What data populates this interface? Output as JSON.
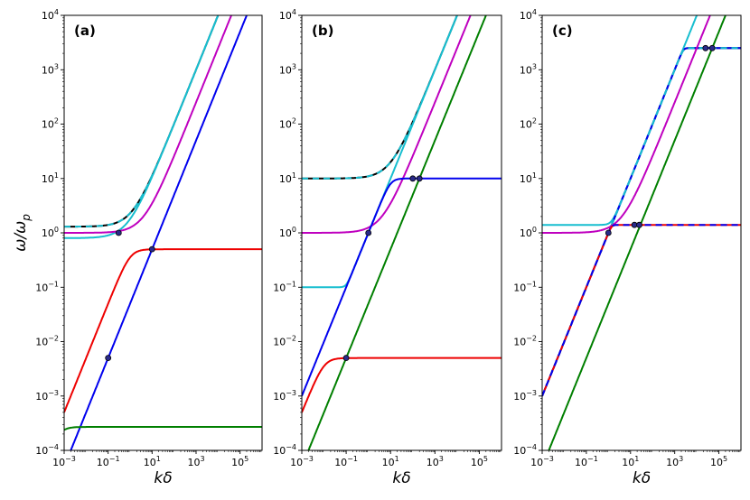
{
  "chart_data": {
    "type": "line",
    "xlabel": "kδ",
    "ylabel": "ω/ω_p",
    "xscale": "log",
    "yscale": "log",
    "xlim": [
      0.001,
      1000000
    ],
    "ylim": [
      0.0001,
      10000
    ],
    "x_ticks": [
      {
        "value": 0.001,
        "base": "10",
        "exp": "−3"
      },
      {
        "value": 0.1,
        "base": "10",
        "exp": "−1"
      },
      {
        "value": 10,
        "base": "10",
        "exp": "1"
      },
      {
        "value": 1000,
        "base": "10",
        "exp": "3"
      },
      {
        "value": 100000,
        "base": "10",
        "exp": "5"
      }
    ],
    "y_ticks": [
      {
        "value": 0.0001,
        "base": "10",
        "exp": "−4"
      },
      {
        "value": 0.001,
        "base": "10",
        "exp": "−3"
      },
      {
        "value": 0.01,
        "base": "10",
        "exp": "−2"
      },
      {
        "value": 0.1,
        "base": "10",
        "exp": "−1"
      },
      {
        "value": 1,
        "base": "10",
        "exp": "0"
      },
      {
        "value": 10,
        "base": "10",
        "exp": "1"
      },
      {
        "value": 100,
        "base": "10",
        "exp": "2"
      },
      {
        "value": 1000,
        "base": "10",
        "exp": "3"
      },
      {
        "value": 10000,
        "base": "10",
        "exp": "4"
      }
    ],
    "grid": false,
    "legend": false,
    "colors": {
      "black": "#000000",
      "cyan": "#17becf",
      "magenta": "#bf00bf",
      "blue": "#0000ee",
      "red": "#ee0000",
      "green": "#007f00"
    },
    "panels": [
      {
        "label": "(a)",
        "series": [
          {
            "color": "black",
            "dashed": true,
            "kind": "dispersion",
            "a": 1.3,
            "b": 1.0,
            "p": 1,
            "q": 1
          },
          {
            "color": "cyan",
            "dashed": true,
            "kind": "dispersion",
            "a": 0.8,
            "b": 1.0,
            "p": 1,
            "q": 1
          },
          {
            "color": "magenta",
            "kind": "dispersion",
            "a": 1.0,
            "b": 0.25,
            "p": 1,
            "q": 1
          },
          {
            "color": "blue",
            "kind": "line",
            "c": 0.05
          },
          {
            "color": "red",
            "kind": "sat",
            "c": 0.5,
            "plateau": 0.5,
            "p": 2
          },
          {
            "color": "green",
            "kind": "sat",
            "c": 0.5,
            "plateau": 0.00027,
            "p": 2
          }
        ],
        "points": [
          {
            "x": 0.3,
            "y": 1.0
          },
          {
            "x": 10,
            "y": 0.5
          },
          {
            "x": 0.1,
            "y": 0.005
          }
        ]
      },
      {
        "label": "(b)",
        "series": [
          {
            "color": "black",
            "dashed": true,
            "kind": "dispersion",
            "a": 10,
            "b": 1.0,
            "p": 1,
            "q": 1
          },
          {
            "color": "cyan",
            "kind": "cyan_b"
          },
          {
            "color": "magenta",
            "kind": "dispersion",
            "a": 1.0,
            "b": 0.25,
            "p": 1,
            "q": 1
          },
          {
            "color": "blue",
            "kind": "sat",
            "c": 1.0,
            "plateau": 10,
            "p": 3
          },
          {
            "color": "green",
            "kind": "line",
            "c": 0.05
          },
          {
            "color": "red",
            "kind": "sat",
            "c": 0.5,
            "plateau": 0.005,
            "p": 2
          }
        ],
        "points": [
          {
            "x": 1,
            "y": 1.0
          },
          {
            "x": 100,
            "y": 10
          },
          {
            "x": 200,
            "y": 10
          },
          {
            "x": 0.1,
            "y": 0.005
          }
        ]
      },
      {
        "label": "(c)",
        "series": [
          {
            "color": "black",
            "dashed": true,
            "kind": "sat",
            "c": 1.0,
            "plateau": 2500,
            "p": 8
          },
          {
            "color": "cyan",
            "dashed": true,
            "kind": "dispersion",
            "a": 1.4,
            "b": 1.0,
            "p": 1,
            "q": 4
          },
          {
            "color": "blue",
            "dashed": true,
            "kind": "sat",
            "c": 1.0,
            "plateau": 2500,
            "p": 8
          },
          {
            "color": "magenta",
            "kind": "dispersion",
            "a": 1.0,
            "b": 0.25,
            "p": 1,
            "q": 1
          },
          {
            "color": "red",
            "dashed": true,
            "kind": "sat",
            "c": 1.0,
            "plateau": 1.4,
            "p": 8
          },
          {
            "color": "green",
            "kind": "line",
            "c": 0.05
          }
        ],
        "points": [
          {
            "x": 1,
            "y": 1.0
          },
          {
            "x": 15,
            "y": 1.4
          },
          {
            "x": 25,
            "y": 1.4
          },
          {
            "x": 25000,
            "y": 2500
          },
          {
            "x": 50000,
            "y": 2500
          }
        ]
      }
    ]
  }
}
